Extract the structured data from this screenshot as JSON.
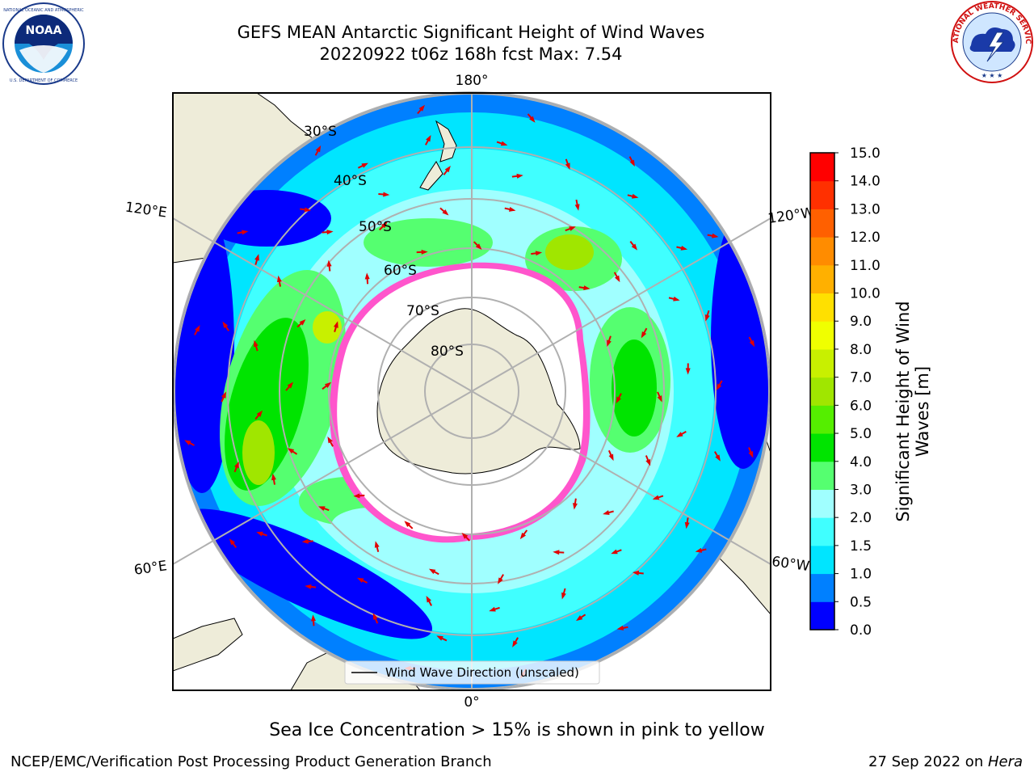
{
  "title": {
    "line1": "GEFS MEAN Antarctic Significant Height of Wind Waves",
    "line2": "20220922 t06z 168h fcst   Max: 7.54"
  },
  "logos": {
    "left_icon": "noaa-logo",
    "left_text": "NOAA",
    "left_ring_text": "NATIONAL OCEANIC AND ATMOSPHERIC ADMINISTRATION · U.S. DEPARTMENT OF COMMERCE",
    "right_icon": "nws-logo",
    "right_ring_text": "NATIONAL WEATHER SERVICE"
  },
  "map": {
    "projection": "south-polar-stereographic",
    "lon_labels": {
      "top": "180°",
      "bottom": "0°",
      "upper_left": "120°E",
      "upper_right": "120°W",
      "lower_left": "60°E",
      "lower_right": "60°W"
    },
    "lat_labels": [
      "30°S",
      "40°S",
      "50°S",
      "60°S",
      "70°S",
      "80°S"
    ],
    "legend_label": "Wind Wave Direction (unscaled)",
    "arrow_color": "#e00000",
    "land_color": "#eeecd9",
    "sea_ice_color": "#ff55cc"
  },
  "colorbar": {
    "label": "Significant Height of Wind Waves [m]",
    "ticks": [
      "0.0",
      "0.5",
      "1.0",
      "1.5",
      "2.0",
      "3.0",
      "4.0",
      "5.0",
      "6.0",
      "7.0",
      "8.0",
      "9.0",
      "10.0",
      "11.0",
      "12.0",
      "13.0",
      "14.0",
      "15.0"
    ],
    "colors": [
      "#0000ff",
      "#0080ff",
      "#00e5ff",
      "#40ffff",
      "#a0ffff",
      "#55ff70",
      "#00e400",
      "#55ee00",
      "#a0e600",
      "#c8f000",
      "#f0ff00",
      "#ffe000",
      "#ffb000",
      "#ff8c00",
      "#ff6000",
      "#ff3000",
      "#ff0000"
    ]
  },
  "ice_note": "Sea Ice Concentration > 15% is shown in pink to yellow",
  "footer": {
    "left": "NCEP/EMC/Verification Post Processing Product Generation Branch",
    "right_prefix": "27 Sep 2022 on ",
    "right_machine": "Hera"
  }
}
